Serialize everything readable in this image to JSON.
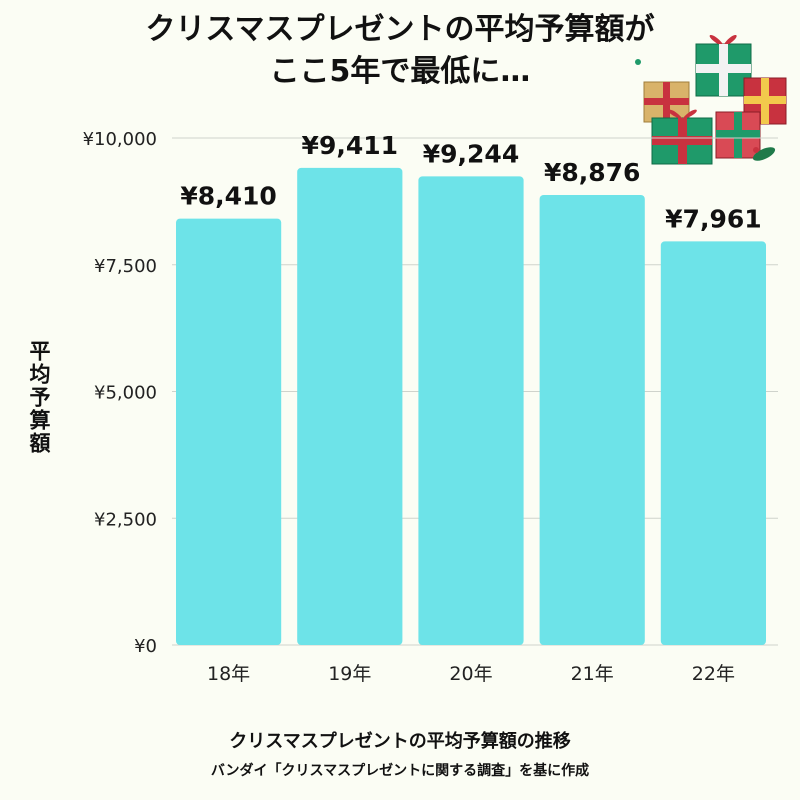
{
  "title": {
    "line1": "クリスマスプレゼントの平均予算額が",
    "line2": "ここ5年で最低に…"
  },
  "chart_data": {
    "type": "bar",
    "categories": [
      "18年",
      "19年",
      "20年",
      "21年",
      "22年"
    ],
    "values": [
      8410,
      9411,
      9244,
      8876,
      7961
    ],
    "value_labels": [
      "¥8,410",
      "¥9,411",
      "¥9,244",
      "¥8,876",
      "¥7,961"
    ],
    "ylabel": "平均予算額",
    "ylim": [
      0,
      10000
    ],
    "yticks": [
      0,
      2500,
      5000,
      7500,
      10000
    ],
    "ytick_labels": [
      "¥0",
      "¥2,500",
      "¥5,000",
      "¥7,500",
      "¥10,000"
    ],
    "grid": true,
    "bar_color": "#6de3e8"
  },
  "caption": {
    "main": "クリスマスプレゼントの平均予算額の推移",
    "source": "バンダイ「クリスマスプレゼントに関する調査」を基に作成"
  },
  "decoration": {
    "icon": "christmas-gifts-icon",
    "colors": [
      "#1f9a6a",
      "#d9b36a",
      "#c8323f",
      "#f2c94c"
    ]
  }
}
